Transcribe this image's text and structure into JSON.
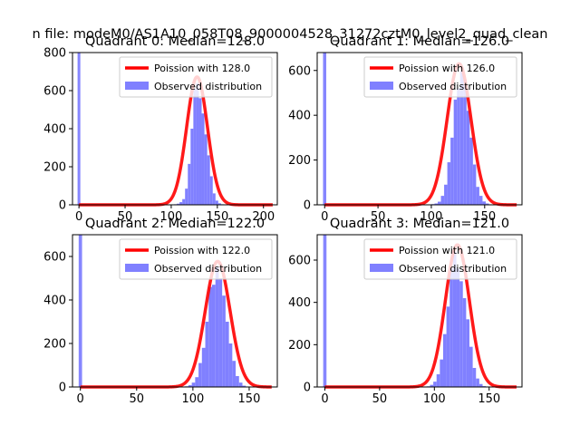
{
  "suptitle": "n file: modeM0/AS1A10_058T08_9000004528_31272cztM0_level2_quad_clean",
  "colors": {
    "fit": "#ff0000",
    "hist": "#8080ff",
    "spike": "#8080ff"
  },
  "chart_data": [
    {
      "type": "histogram",
      "title": "Quadrant 0: Median=128.0",
      "median": 128.0,
      "xlim": [
        -7,
        215
      ],
      "ylim": [
        0,
        800
      ],
      "xticks": [
        0,
        50,
        100,
        150,
        200
      ],
      "yticks": [
        0,
        200,
        400,
        600,
        800
      ],
      "fit_label": "Poission with 128.0",
      "hist_label": "Observed distribution",
      "spike_value": 800,
      "bin_width": 3,
      "hist": [
        [
          103,
          3
        ],
        [
          106,
          6
        ],
        [
          109,
          14
        ],
        [
          112,
          30
        ],
        [
          115,
          85
        ],
        [
          118,
          215
        ],
        [
          121,
          400
        ],
        [
          124,
          610
        ],
        [
          127,
          640
        ],
        [
          130,
          560
        ],
        [
          133,
          480
        ],
        [
          136,
          370
        ],
        [
          139,
          260
        ],
        [
          142,
          150
        ],
        [
          145,
          60
        ],
        [
          148,
          22
        ],
        [
          151,
          8
        ],
        [
          154,
          3
        ]
      ]
    },
    {
      "type": "histogram",
      "title": "Quadrant 1: Median=126.0",
      "median": 126.0,
      "xlim": [
        -7,
        185
      ],
      "ylim": [
        0,
        680
      ],
      "xticks": [
        0,
        50,
        100,
        150
      ],
      "yticks": [
        0,
        200,
        400,
        600
      ],
      "fit_label": "Poission with 126.0",
      "hist_label": "Observed distribution",
      "spike_value": 680,
      "bin_width": 3,
      "hist": [
        [
          100,
          3
        ],
        [
          103,
          6
        ],
        [
          106,
          14
        ],
        [
          109,
          40
        ],
        [
          112,
          90
        ],
        [
          115,
          190
        ],
        [
          118,
          300
        ],
        [
          121,
          470
        ],
        [
          124,
          520
        ],
        [
          127,
          600
        ],
        [
          130,
          560
        ],
        [
          133,
          420
        ],
        [
          136,
          300
        ],
        [
          139,
          180
        ],
        [
          142,
          80
        ],
        [
          145,
          40
        ],
        [
          148,
          15
        ],
        [
          151,
          6
        ]
      ]
    },
    {
      "type": "histogram",
      "title": "Quadrant 2: Median=122.0",
      "median": 122.0,
      "xlim": [
        -7,
        175
      ],
      "ylim": [
        0,
        700
      ],
      "xticks": [
        0,
        50,
        100,
        150
      ],
      "yticks": [
        0,
        200,
        400,
        600
      ],
      "fit_label": "Poission with 122.0",
      "hist_label": "Observed distribution",
      "spike_value": 700,
      "bin_width": 3,
      "hist": [
        [
          93,
          3
        ],
        [
          96,
          8
        ],
        [
          99,
          20
        ],
        [
          102,
          45
        ],
        [
          105,
          110
        ],
        [
          108,
          180
        ],
        [
          111,
          300
        ],
        [
          114,
          460
        ],
        [
          117,
          470
        ],
        [
          120,
          550
        ],
        [
          123,
          500
        ],
        [
          126,
          420
        ],
        [
          129,
          300
        ],
        [
          132,
          200
        ],
        [
          135,
          120
        ],
        [
          138,
          50
        ],
        [
          141,
          20
        ],
        [
          144,
          6
        ]
      ]
    },
    {
      "type": "histogram",
      "title": "Quadrant 3: Median=121.0",
      "median": 121.0,
      "xlim": [
        -7,
        180
      ],
      "ylim": [
        0,
        720
      ],
      "xticks": [
        0,
        50,
        100,
        150
      ],
      "yticks": [
        0,
        200,
        400,
        600
      ],
      "fit_label": "Poission with 121.0",
      "hist_label": "Observed distribution",
      "spike_value": 720,
      "bin_width": 3,
      "hist": [
        [
          93,
          3
        ],
        [
          96,
          10
        ],
        [
          99,
          25
        ],
        [
          102,
          60
        ],
        [
          105,
          130
        ],
        [
          108,
          250
        ],
        [
          111,
          380
        ],
        [
          114,
          560
        ],
        [
          117,
          640
        ],
        [
          120,
          560
        ],
        [
          123,
          500
        ],
        [
          126,
          420
        ],
        [
          129,
          320
        ],
        [
          132,
          190
        ],
        [
          135,
          90
        ],
        [
          138,
          40
        ],
        [
          141,
          14
        ],
        [
          144,
          4
        ]
      ]
    }
  ]
}
